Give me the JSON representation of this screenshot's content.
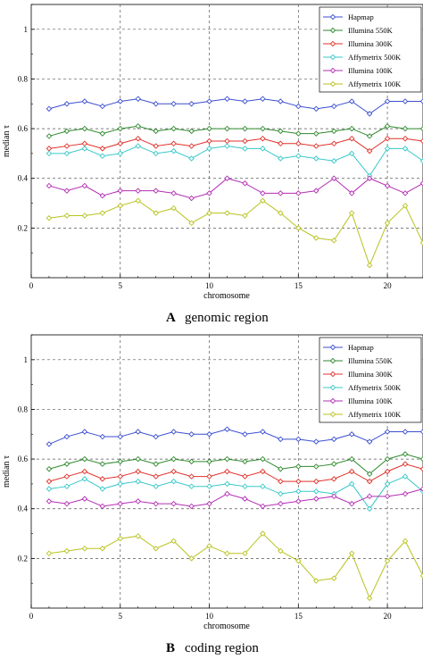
{
  "colors": {
    "Hapmap": "#3b4fd0",
    "Illumina 550K": "#2e8a2e",
    "Illumina 300K": "#e0302a",
    "Affymetrix 500K": "#38c8c8",
    "Illumina 100K": "#b42db4",
    "Affymetrix 100K": "#b8c21e"
  },
  "chart_data": [
    {
      "type": "line",
      "caption_letter": "A",
      "caption_text": "genomic region",
      "xlabel": "chromosome",
      "ylabel": "median τ",
      "xlim": [
        0,
        22
      ],
      "ylim": [
        0,
        1.1
      ],
      "xticks": [
        0,
        5,
        10,
        15,
        20
      ],
      "yticks": [
        0.2,
        0.4,
        0.6,
        0.8,
        1
      ],
      "ytick_labels": [
        "0.2",
        "0.4",
        "0.6",
        "0.8",
        "1"
      ],
      "legend_position": "top-right",
      "x": [
        1,
        2,
        3,
        4,
        5,
        6,
        7,
        8,
        9,
        10,
        11,
        12,
        13,
        14,
        15,
        16,
        17,
        18,
        19,
        20,
        21,
        22
      ],
      "series": [
        {
          "name": "Hapmap",
          "values": [
            0.68,
            0.7,
            0.71,
            0.69,
            0.71,
            0.72,
            0.7,
            0.7,
            0.7,
            0.71,
            0.72,
            0.71,
            0.72,
            0.71,
            0.69,
            0.68,
            0.69,
            0.71,
            0.66,
            0.71,
            0.71,
            0.71
          ]
        },
        {
          "name": "Illumina 550K",
          "values": [
            0.57,
            0.59,
            0.6,
            0.58,
            0.6,
            0.61,
            0.59,
            0.6,
            0.59,
            0.6,
            0.6,
            0.6,
            0.6,
            0.59,
            0.58,
            0.58,
            0.59,
            0.6,
            0.57,
            0.61,
            0.6,
            0.6
          ]
        },
        {
          "name": "Illumina 300K",
          "values": [
            0.52,
            0.53,
            0.54,
            0.52,
            0.54,
            0.56,
            0.53,
            0.54,
            0.53,
            0.55,
            0.55,
            0.55,
            0.56,
            0.54,
            0.54,
            0.53,
            0.54,
            0.56,
            0.51,
            0.56,
            0.56,
            0.55
          ]
        },
        {
          "name": "Affymetrix 500K",
          "values": [
            0.5,
            0.5,
            0.52,
            0.49,
            0.5,
            0.53,
            0.5,
            0.51,
            0.48,
            0.52,
            0.53,
            0.52,
            0.52,
            0.48,
            0.49,
            0.48,
            0.47,
            0.5,
            0.41,
            0.52,
            0.52,
            0.47
          ]
        },
        {
          "name": "Illumina 100K",
          "values": [
            0.37,
            0.35,
            0.37,
            0.33,
            0.35,
            0.35,
            0.35,
            0.34,
            0.32,
            0.34,
            0.4,
            0.38,
            0.34,
            0.34,
            0.34,
            0.35,
            0.4,
            0.34,
            0.4,
            0.37,
            0.34,
            0.38
          ]
        },
        {
          "name": "Affymetrix 100K",
          "values": [
            0.24,
            0.25,
            0.25,
            0.26,
            0.29,
            0.31,
            0.26,
            0.28,
            0.22,
            0.26,
            0.26,
            0.25,
            0.31,
            0.26,
            0.2,
            0.16,
            0.15,
            0.26,
            0.05,
            0.22,
            0.29,
            0.14
          ]
        }
      ]
    },
    {
      "type": "line",
      "caption_letter": "B",
      "caption_text": "coding region",
      "xlabel": "chromosome",
      "ylabel": "median τ",
      "xlim": [
        0,
        22
      ],
      "ylim": [
        0,
        1.1
      ],
      "xticks": [
        0,
        5,
        10,
        15,
        20
      ],
      "yticks": [
        0.2,
        0.4,
        0.6,
        0.8,
        1
      ],
      "ytick_labels": [
        "0.2",
        "0.4",
        "0.6",
        "0.8",
        "1"
      ],
      "legend_position": "top-right",
      "x": [
        1,
        2,
        3,
        4,
        5,
        6,
        7,
        8,
        9,
        10,
        11,
        12,
        13,
        14,
        15,
        16,
        17,
        18,
        19,
        20,
        21,
        22
      ],
      "series": [
        {
          "name": "Hapmap",
          "values": [
            0.66,
            0.69,
            0.71,
            0.69,
            0.69,
            0.71,
            0.69,
            0.71,
            0.7,
            0.7,
            0.72,
            0.7,
            0.71,
            0.68,
            0.68,
            0.67,
            0.68,
            0.7,
            0.67,
            0.71,
            0.71,
            0.71
          ]
        },
        {
          "name": "Illumina 550K",
          "values": [
            0.56,
            0.58,
            0.6,
            0.58,
            0.59,
            0.6,
            0.58,
            0.6,
            0.59,
            0.59,
            0.6,
            0.59,
            0.6,
            0.56,
            0.57,
            0.57,
            0.58,
            0.6,
            0.54,
            0.6,
            0.62,
            0.6
          ]
        },
        {
          "name": "Illumina 300K",
          "values": [
            0.51,
            0.53,
            0.55,
            0.52,
            0.53,
            0.55,
            0.53,
            0.55,
            0.53,
            0.53,
            0.55,
            0.53,
            0.55,
            0.51,
            0.51,
            0.51,
            0.52,
            0.55,
            0.51,
            0.55,
            0.58,
            0.56
          ]
        },
        {
          "name": "Affymetrix 500K",
          "values": [
            0.48,
            0.49,
            0.52,
            0.48,
            0.5,
            0.51,
            0.49,
            0.51,
            0.49,
            0.49,
            0.5,
            0.49,
            0.49,
            0.46,
            0.47,
            0.47,
            0.46,
            0.5,
            0.4,
            0.5,
            0.53,
            0.47
          ]
        },
        {
          "name": "Illumina 100K",
          "values": [
            0.43,
            0.42,
            0.44,
            0.41,
            0.42,
            0.43,
            0.42,
            0.42,
            0.41,
            0.42,
            0.46,
            0.44,
            0.41,
            0.42,
            0.43,
            0.44,
            0.45,
            0.42,
            0.45,
            0.45,
            0.46,
            0.48
          ]
        },
        {
          "name": "Affymetrix 100K",
          "values": [
            0.22,
            0.23,
            0.24,
            0.24,
            0.28,
            0.29,
            0.24,
            0.27,
            0.2,
            0.25,
            0.22,
            0.22,
            0.3,
            0.23,
            0.19,
            0.11,
            0.12,
            0.22,
            0.04,
            0.19,
            0.27,
            0.13
          ]
        }
      ]
    }
  ]
}
